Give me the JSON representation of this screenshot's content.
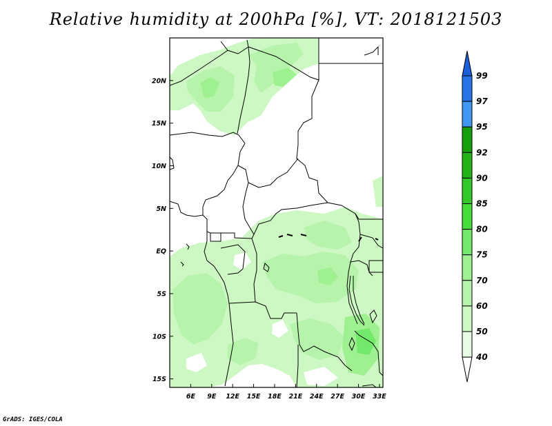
{
  "title": "Relative humidity at 200hPa [%], VT: 2018121503",
  "credit": "GrADS: IGES/COLA",
  "map": {
    "lon_range": [
      3,
      33.5
    ],
    "lat_range": [
      -16,
      25
    ],
    "lat_labels": [
      "20N",
      "15N",
      "10N",
      "5N",
      "EQ",
      "5S",
      "10S",
      "15S"
    ],
    "lat_values": [
      20,
      15,
      10,
      5,
      0,
      -5,
      -10,
      -15
    ],
    "lon_labels": [
      "6E",
      "9E",
      "12E",
      "15E",
      "18E",
      "21E",
      "24E",
      "27E",
      "30E",
      "33E"
    ],
    "lon_values": [
      6,
      9,
      12,
      15,
      18,
      21,
      24,
      27,
      30,
      33
    ]
  },
  "colorbar": {
    "levels": [
      "99",
      "97",
      "95",
      "92",
      "90",
      "85",
      "80",
      "75",
      "70",
      "60",
      "50",
      "40"
    ],
    "colors": [
      "#2a73e6",
      "#4297f0",
      "#17a00e",
      "#24b41a",
      "#34c82a",
      "#45dc3c",
      "#73e86a",
      "#9ef091",
      "#b6f4ab",
      "#cdf8c4",
      "#e9fce5"
    ],
    "top_triangle_color": "#1b5fd8",
    "bottom_triangle_color": "#ffffff"
  }
}
